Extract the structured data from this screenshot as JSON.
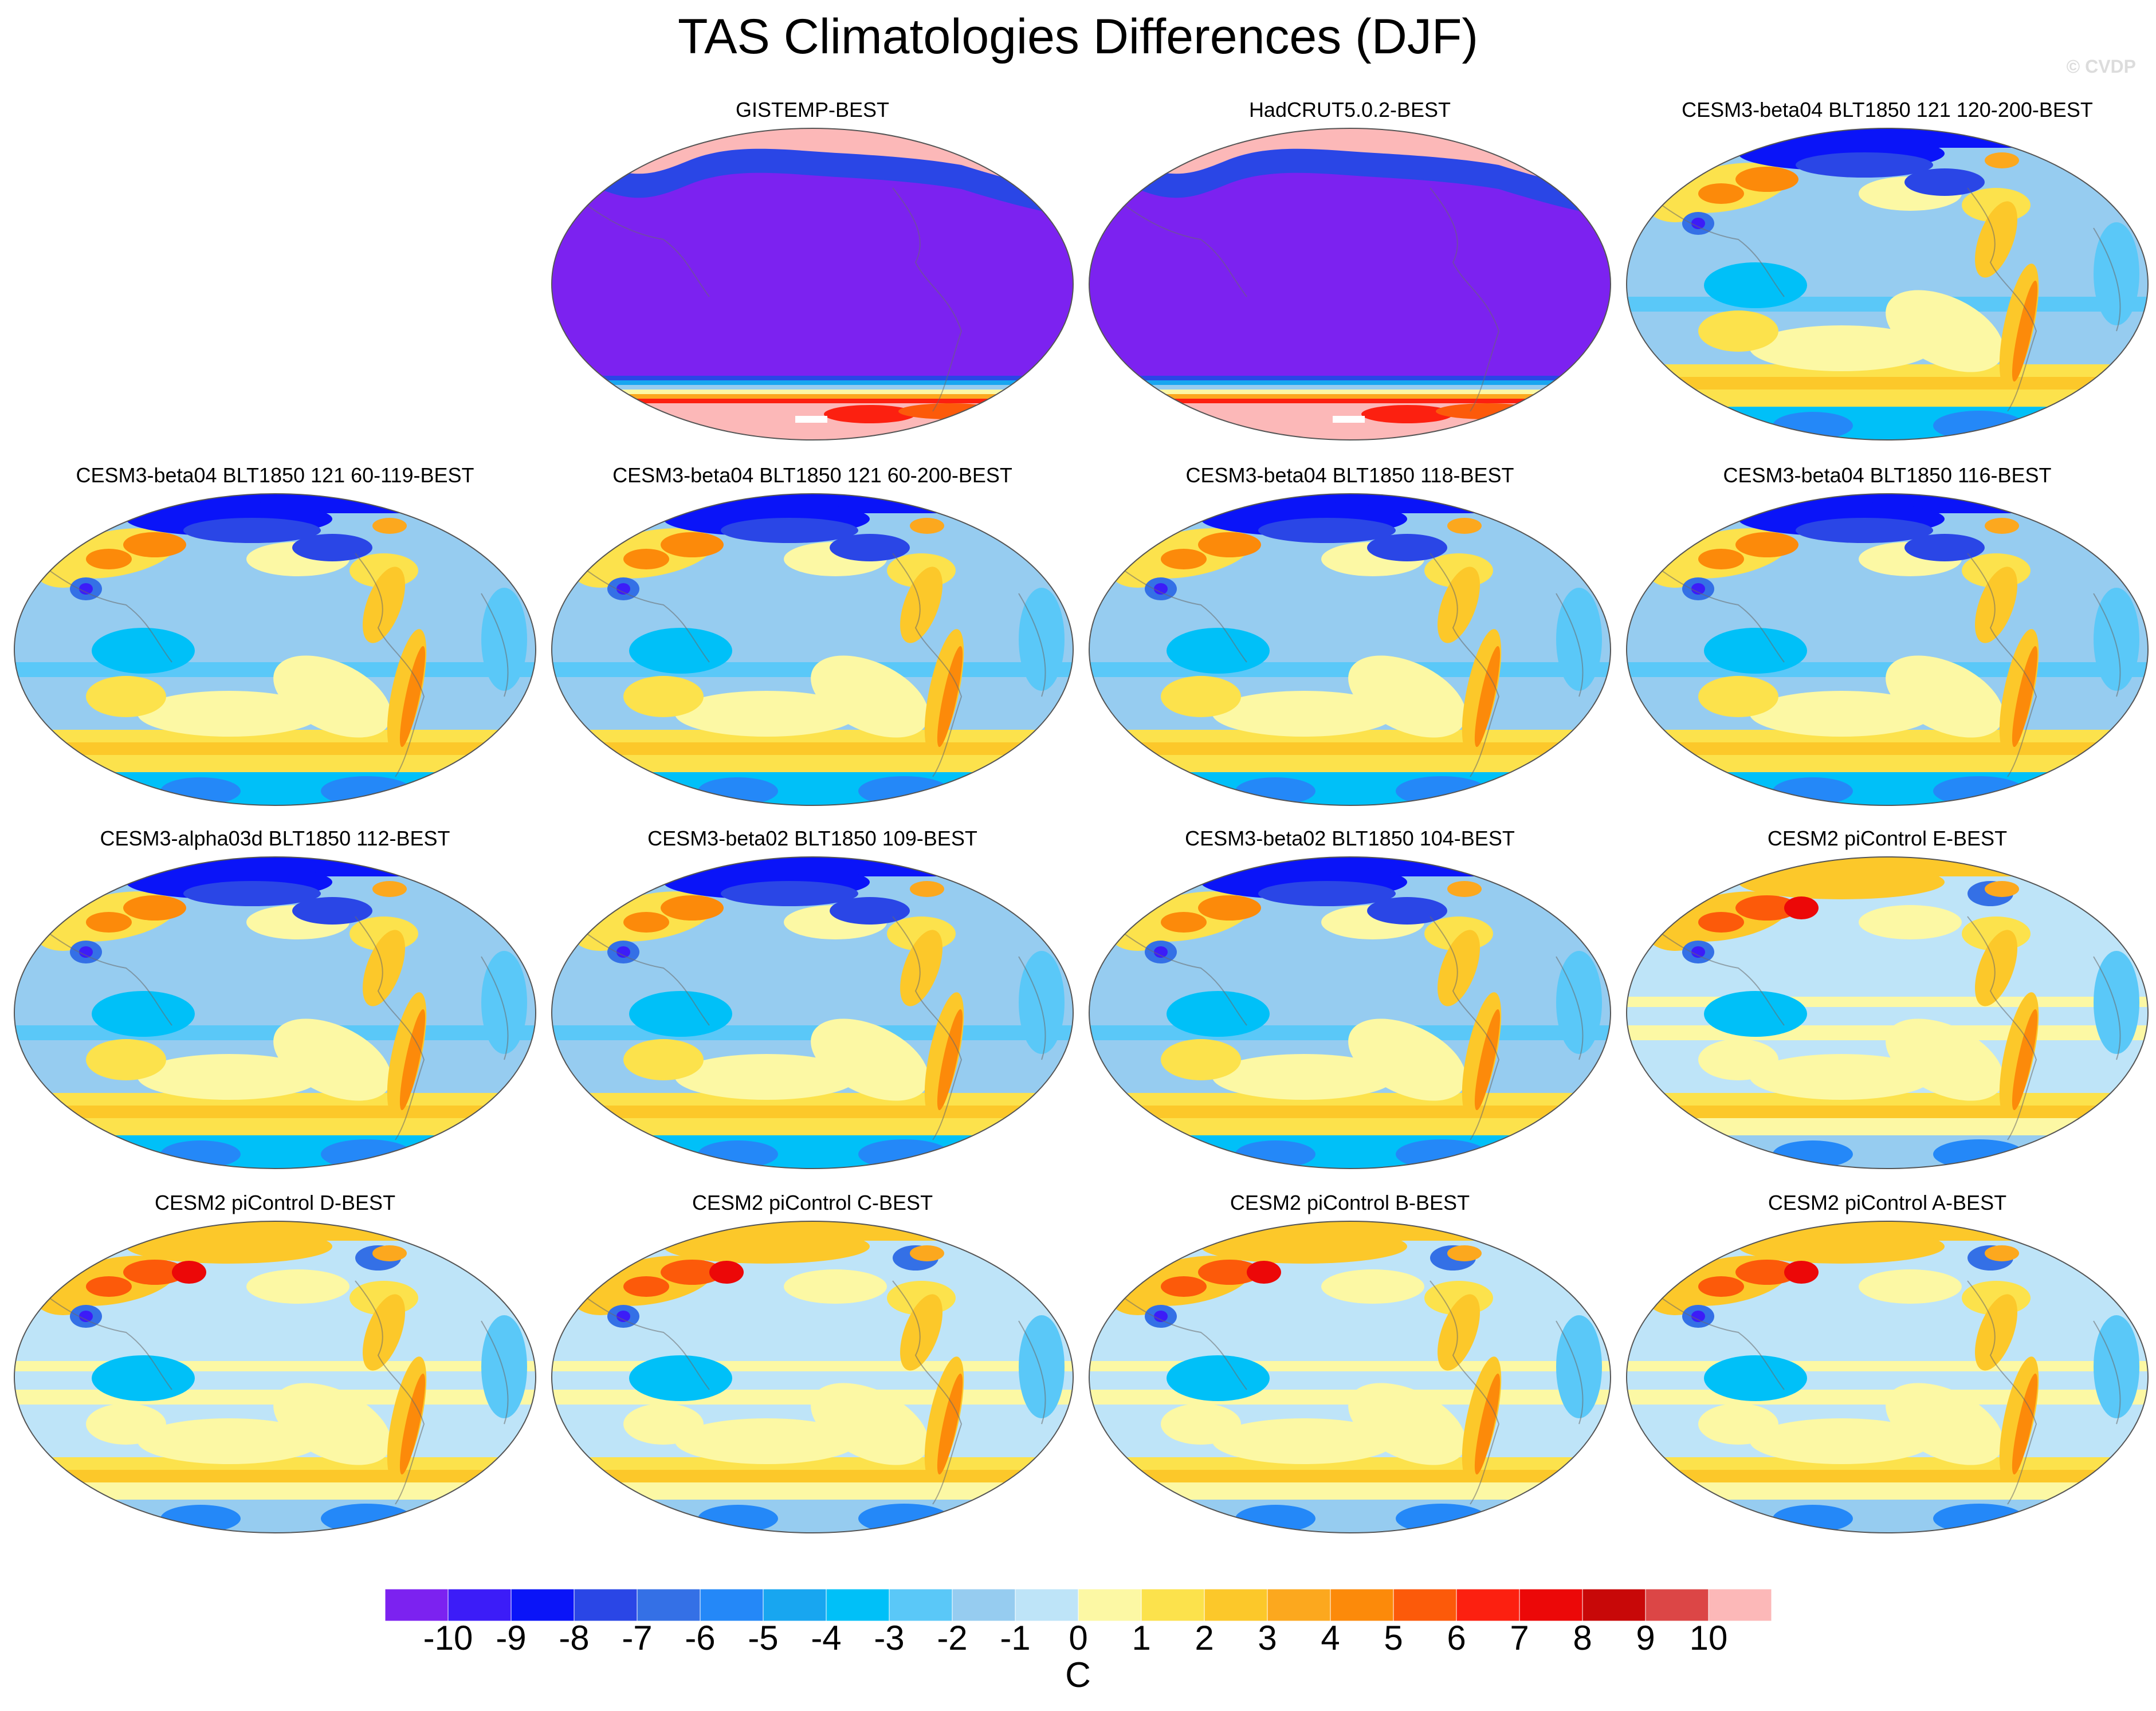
{
  "title": "TAS Climatologies Differences (DJF)",
  "watermark": "© CVDP",
  "colorbar": {
    "unit": "C",
    "tick_labels": [
      "-10",
      "-9",
      "-8",
      "-7",
      "-6",
      "-5",
      "-4",
      "-3",
      "-2",
      "-1",
      "0",
      "1",
      "2",
      "3",
      "4",
      "5",
      "6",
      "7",
      "8",
      "9",
      "10"
    ],
    "colors": [
      "#7c22f0",
      "#3c1cf8",
      "#0a14f8",
      "#2a46e6",
      "#3470e6",
      "#2488f8",
      "#18a6f0",
      "#00c0f8",
      "#5ac8f8",
      "#96ccf0",
      "#bee4f8",
      "#fcf8a4",
      "#fce24c",
      "#fcc82a",
      "#fca81e",
      "#fc8a0a",
      "#fc5a0a",
      "#fc2010",
      "#ec0808",
      "#c80808",
      "#dc4646",
      "#fcb8b8"
    ]
  },
  "panels": [
    {
      "title": "GISTEMP-BEST",
      "pattern": "obs"
    },
    {
      "title": "HadCRUT5.0.2-BEST",
      "pattern": "obs"
    },
    {
      "title": "CESM3-beta04 BLT1850 121 120-200-BEST",
      "pattern": "model-cool"
    },
    {
      "title": "CESM3-beta04 BLT1850 121 60-119-BEST",
      "pattern": "model-cool"
    },
    {
      "title": "CESM3-beta04 BLT1850 121 60-200-BEST",
      "pattern": "model-cool"
    },
    {
      "title": "CESM3-beta04 BLT1850 118-BEST",
      "pattern": "model-cool"
    },
    {
      "title": "CESM3-beta04 BLT1850 116-BEST",
      "pattern": "model-cool"
    },
    {
      "title": "CESM3-alpha03d BLT1850 112-BEST",
      "pattern": "model-cool"
    },
    {
      "title": "CESM3-beta02 BLT1850 109-BEST",
      "pattern": "model-cool"
    },
    {
      "title": "CESM3-beta02 BLT1850 104-BEST",
      "pattern": "model-cool"
    },
    {
      "title": "CESM2 piControl E-BEST",
      "pattern": "model-warm"
    },
    {
      "title": "CESM2 piControl D-BEST",
      "pattern": "model-warm"
    },
    {
      "title": "CESM2 piControl C-BEST",
      "pattern": "model-warm"
    },
    {
      "title": "CESM2 piControl B-BEST",
      "pattern": "model-warm"
    },
    {
      "title": "CESM2 piControl A-BEST",
      "pattern": "model-warm"
    }
  ]
}
